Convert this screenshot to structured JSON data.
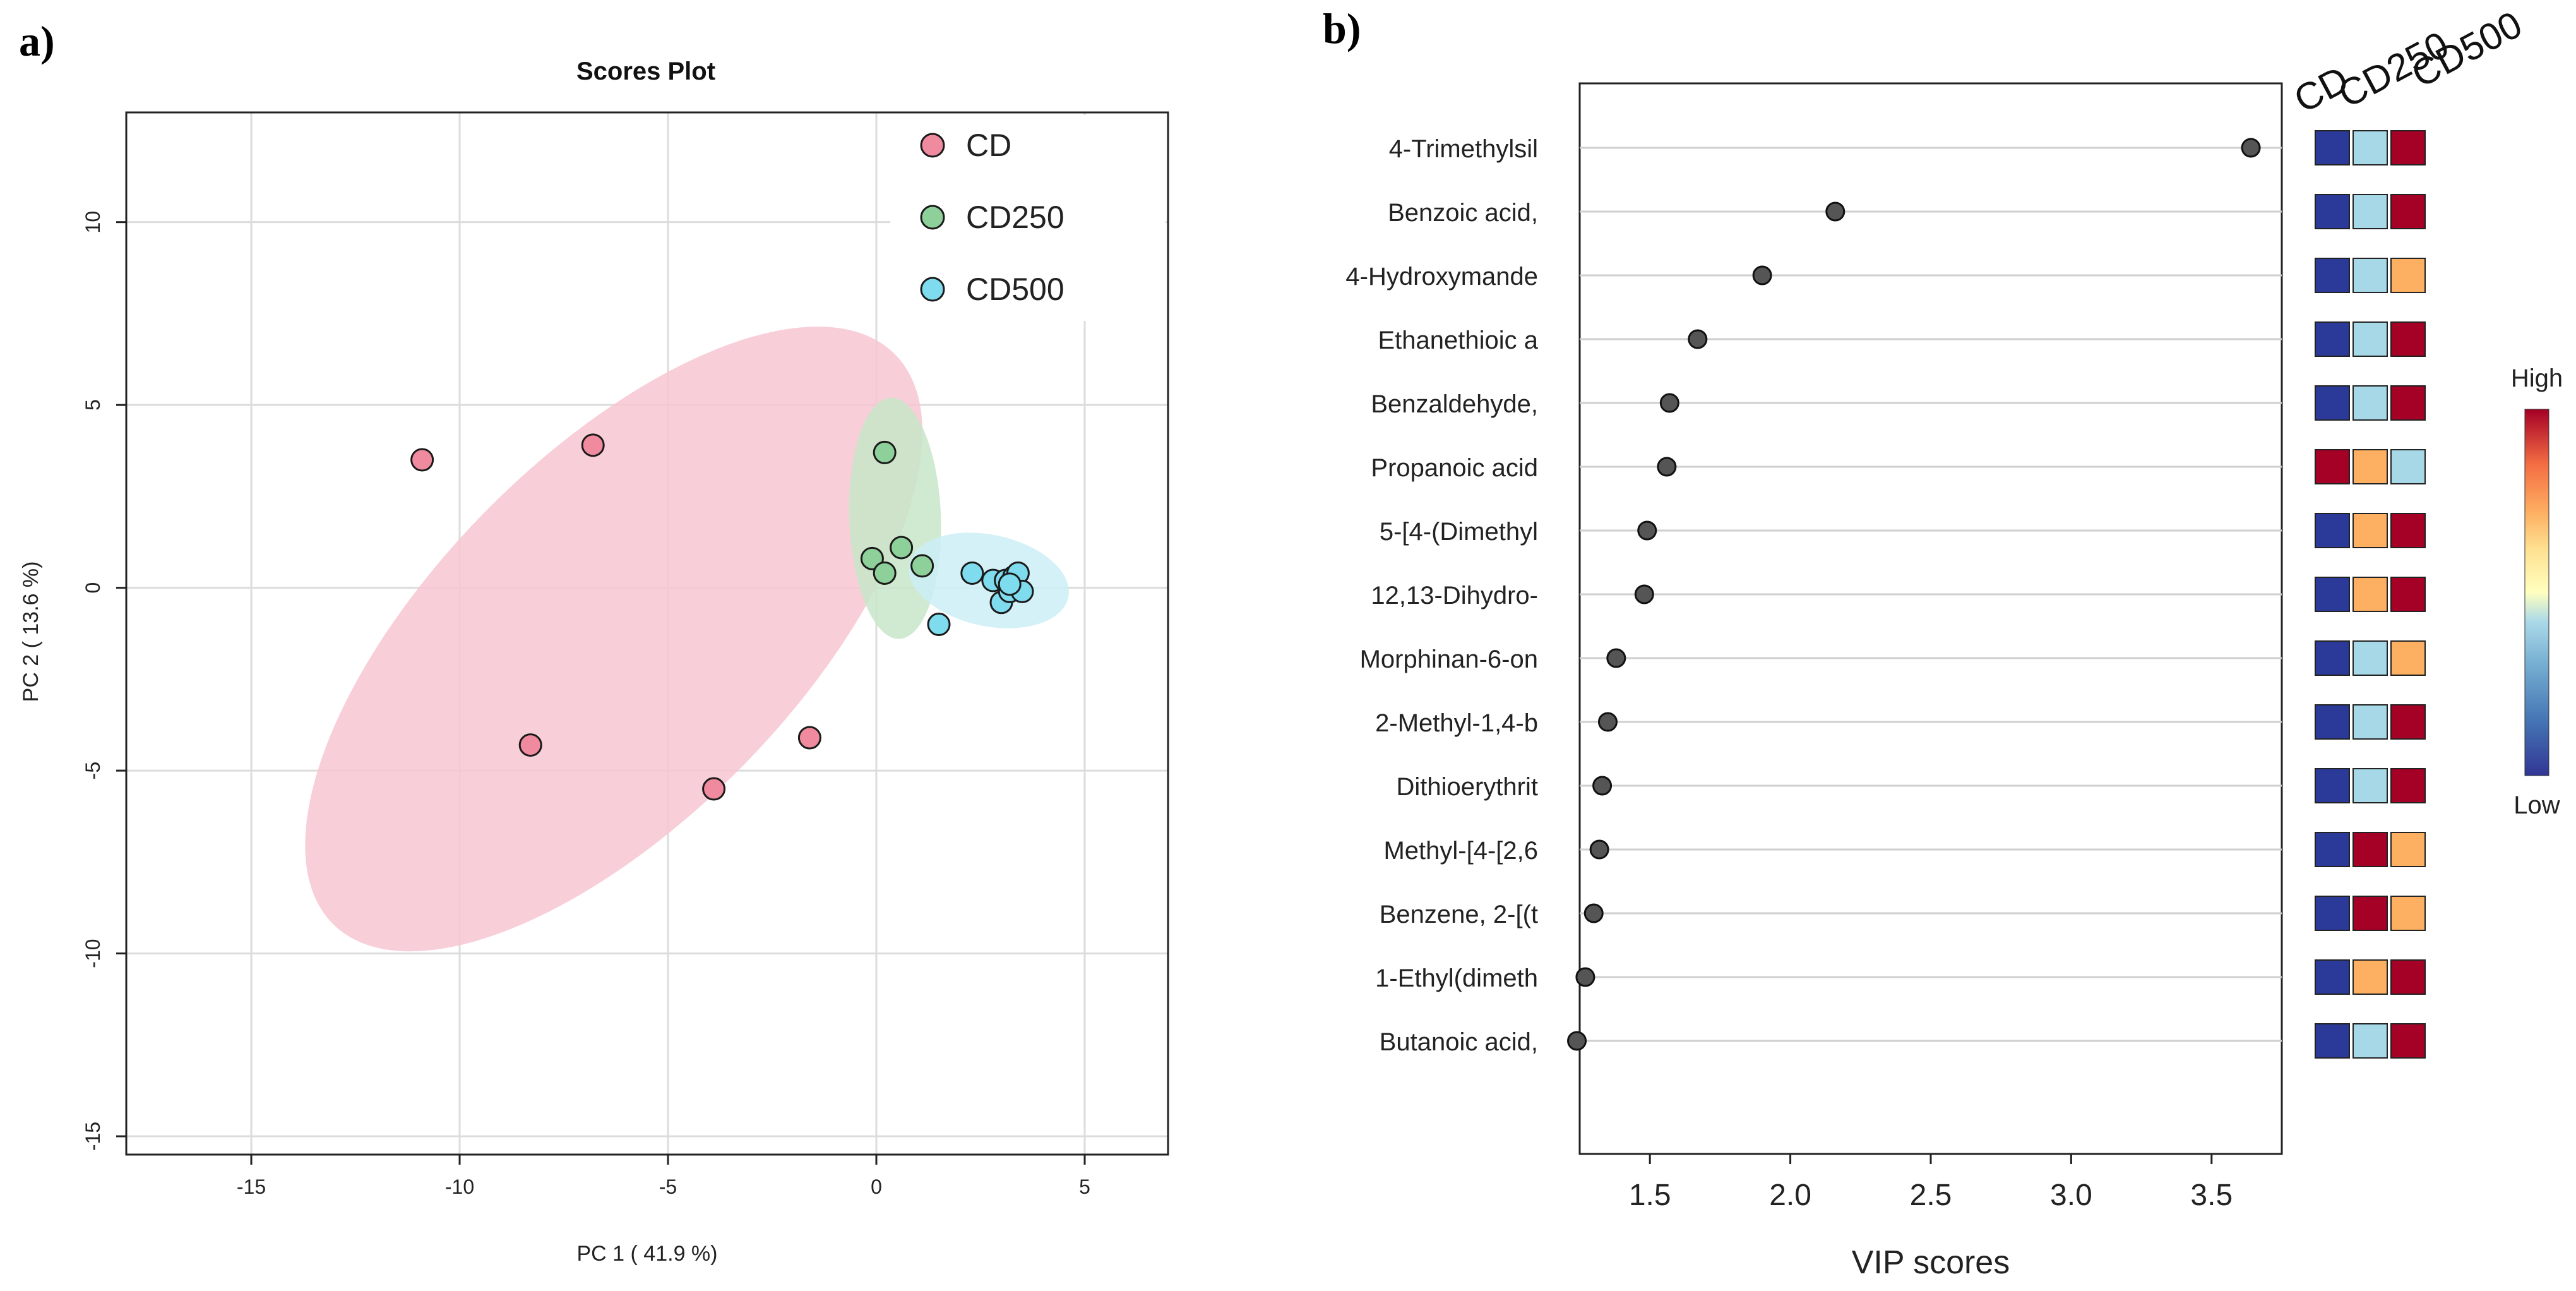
{
  "panels": {
    "a": "a)",
    "b": "b)"
  },
  "chart_data": [
    {
      "type": "scatter",
      "title": "Scores Plot",
      "xlabel": "PC 1 ( 41.9 %)",
      "ylabel": "PC 2 ( 13.6 %)",
      "xlim": [
        -18,
        7
      ],
      "ylim": [
        -15.5,
        13
      ],
      "xticks": [
        -15,
        -10,
        -5,
        0,
        5
      ],
      "yticks": [
        -15,
        -10,
        -5,
        0,
        5,
        10
      ],
      "grid": true,
      "legend_position": "top-right",
      "series": [
        {
          "name": "CD",
          "color": "#f08a9e",
          "ellipse_color": "#f7c6d1",
          "points": [
            [
              -10.9,
              3.5
            ],
            [
              -6.8,
              3.9
            ],
            [
              -8.3,
              -4.3
            ],
            [
              -3.9,
              -5.5
            ],
            [
              -1.6,
              -4.1
            ]
          ],
          "ellipse": {
            "cx": -6.3,
            "cy": -1.4,
            "rx": 9.6,
            "ry": 4.95,
            "angle": -45.5
          }
        },
        {
          "name": "CD250",
          "color": "#8ed09a",
          "ellipse_color": "#c8e6c9",
          "points": [
            [
              0.2,
              3.7
            ],
            [
              -0.1,
              0.8
            ],
            [
              0.2,
              0.4
            ],
            [
              0.6,
              1.1
            ],
            [
              1.1,
              0.6
            ]
          ],
          "ellipse": {
            "cx": 0.45,
            "cy": 1.9,
            "rx": 1.1,
            "ry": 3.3,
            "angle": -2
          }
        },
        {
          "name": "CD500",
          "color": "#7fdcef",
          "ellipse_color": "#cdeef7",
          "points": [
            [
              1.5,
              -1.0
            ],
            [
              2.3,
              0.4
            ],
            [
              2.8,
              0.2
            ],
            [
              3.0,
              -0.4
            ],
            [
              3.1,
              0.2
            ],
            [
              3.2,
              -0.1
            ],
            [
              3.3,
              0.3
            ],
            [
              3.4,
              0.4
            ],
            [
              3.5,
              -0.1
            ],
            [
              3.2,
              0.1
            ]
          ],
          "ellipse": {
            "cx": 2.7,
            "cy": 0.2,
            "rx": 1.95,
            "ry": 1.25,
            "angle": 12
          }
        }
      ]
    },
    {
      "type": "dot",
      "xlabel": "VIP scores",
      "xlim": [
        1.25,
        3.75
      ],
      "xticks": [
        "1.5",
        "2.0",
        "2.5",
        "3.0",
        "3.5"
      ],
      "heatmap_columns": [
        "CD",
        "CD250",
        "CD500"
      ],
      "colorbar_labels": {
        "high": "High",
        "low": "Low"
      },
      "heat_colors": {
        "low": "#2b3a98",
        "mid_low": "#a6d8e8",
        "mid_high": "#fdb061",
        "high": "#a50026"
      },
      "items": [
        {
          "label": "4-Trimethylsil",
          "vip": 3.64,
          "heat": [
            "low",
            "mid_low",
            "high"
          ]
        },
        {
          "label": "Benzoic acid,",
          "vip": 2.16,
          "heat": [
            "low",
            "mid_low",
            "high"
          ]
        },
        {
          "label": "4-Hydroxymande",
          "vip": 1.9,
          "heat": [
            "low",
            "mid_low",
            "mid_high"
          ]
        },
        {
          "label": "Ethanethioic a",
          "vip": 1.67,
          "heat": [
            "low",
            "mid_low",
            "high"
          ]
        },
        {
          "label": "Benzaldehyde,",
          "vip": 1.57,
          "heat": [
            "low",
            "mid_low",
            "high"
          ]
        },
        {
          "label": "Propanoic acid",
          "vip": 1.56,
          "heat": [
            "high",
            "mid_high",
            "mid_low"
          ]
        },
        {
          "label": "5-[4-(Dimethyl",
          "vip": 1.49,
          "heat": [
            "low",
            "mid_high",
            "high"
          ]
        },
        {
          "label": "12,13-Dihydro-",
          "vip": 1.48,
          "heat": [
            "low",
            "mid_high",
            "high"
          ]
        },
        {
          "label": "Morphinan-6-on",
          "vip": 1.38,
          "heat": [
            "low",
            "mid_low",
            "mid_high"
          ]
        },
        {
          "label": "2-Methyl-1,4-b",
          "vip": 1.35,
          "heat": [
            "low",
            "mid_low",
            "high"
          ]
        },
        {
          "label": "Dithioerythrit",
          "vip": 1.33,
          "heat": [
            "low",
            "mid_low",
            "high"
          ]
        },
        {
          "label": "Methyl-[4-[2,6",
          "vip": 1.32,
          "heat": [
            "low",
            "high",
            "mid_high"
          ]
        },
        {
          "label": "Benzene, 2-[(t",
          "vip": 1.3,
          "heat": [
            "low",
            "high",
            "mid_high"
          ]
        },
        {
          "label": "1-Ethyl(dimeth",
          "vip": 1.27,
          "heat": [
            "low",
            "mid_high",
            "high"
          ]
        },
        {
          "label": "Butanoic acid,",
          "vip": 1.24,
          "heat": [
            "low",
            "mid_low",
            "high"
          ]
        }
      ]
    }
  ]
}
